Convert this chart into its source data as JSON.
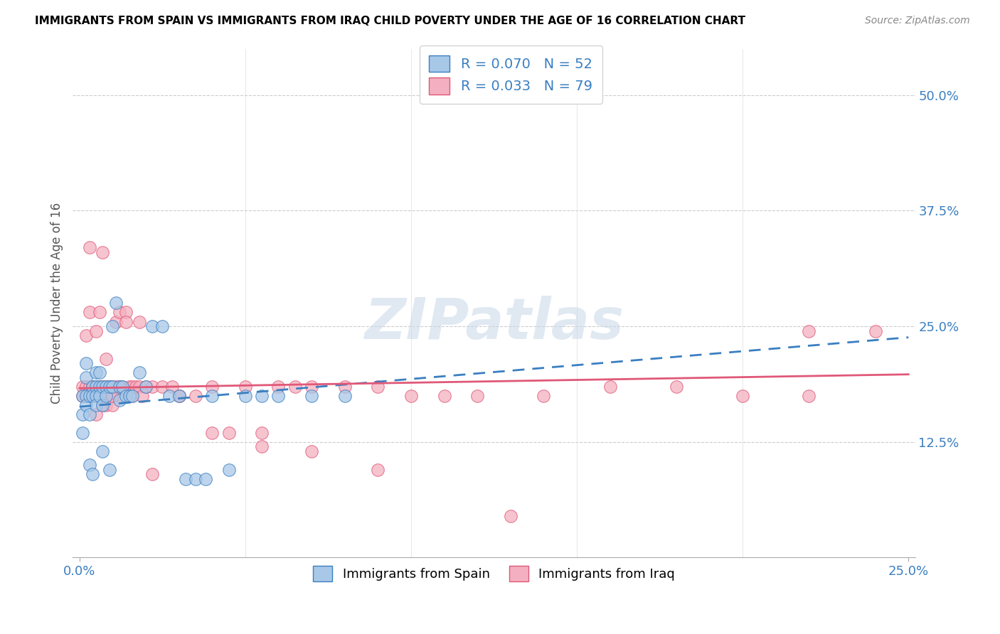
{
  "title": "IMMIGRANTS FROM SPAIN VS IMMIGRANTS FROM IRAQ CHILD POVERTY UNDER THE AGE OF 16 CORRELATION CHART",
  "source": "Source: ZipAtlas.com",
  "ylabel": "Child Poverty Under the Age of 16",
  "yticks_labels": [
    "50.0%",
    "37.5%",
    "25.0%",
    "12.5%"
  ],
  "ytick_vals": [
    0.5,
    0.375,
    0.25,
    0.125
  ],
  "xlim": [
    0.0,
    0.25
  ],
  "ylim": [
    0.0,
    0.55
  ],
  "legend_label1": "Immigrants from Spain",
  "legend_label2": "Immigrants from Iraq",
  "spain_R": "0.070",
  "spain_N": "52",
  "iraq_R": "0.033",
  "iraq_N": "79",
  "color_spain": "#a8c8e8",
  "color_iraq": "#f4b0c0",
  "line_color_spain": "#3a7fc1",
  "line_color_iraq": "#e05878",
  "watermark": "ZIPatlas",
  "spain_x": [
    0.001,
    0.001,
    0.001,
    0.002,
    0.002,
    0.002,
    0.002,
    0.003,
    0.003,
    0.003,
    0.004,
    0.004,
    0.004,
    0.005,
    0.005,
    0.005,
    0.005,
    0.006,
    0.006,
    0.006,
    0.007,
    0.007,
    0.007,
    0.008,
    0.008,
    0.009,
    0.009,
    0.01,
    0.01,
    0.011,
    0.012,
    0.012,
    0.013,
    0.014,
    0.015,
    0.016,
    0.018,
    0.02,
    0.022,
    0.025,
    0.027,
    0.03,
    0.032,
    0.035,
    0.038,
    0.04,
    0.045,
    0.05,
    0.055,
    0.06,
    0.07,
    0.08
  ],
  "spain_y": [
    0.175,
    0.155,
    0.135,
    0.175,
    0.165,
    0.195,
    0.21,
    0.175,
    0.155,
    0.1,
    0.185,
    0.175,
    0.09,
    0.185,
    0.175,
    0.2,
    0.165,
    0.185,
    0.175,
    0.2,
    0.185,
    0.165,
    0.115,
    0.185,
    0.175,
    0.185,
    0.095,
    0.185,
    0.25,
    0.275,
    0.185,
    0.17,
    0.185,
    0.175,
    0.175,
    0.175,
    0.2,
    0.185,
    0.25,
    0.25,
    0.175,
    0.175,
    0.085,
    0.085,
    0.085,
    0.175,
    0.095,
    0.175,
    0.175,
    0.175,
    0.175,
    0.175
  ],
  "iraq_x": [
    0.001,
    0.001,
    0.002,
    0.002,
    0.002,
    0.003,
    0.003,
    0.003,
    0.004,
    0.004,
    0.005,
    0.005,
    0.005,
    0.005,
    0.006,
    0.006,
    0.006,
    0.007,
    0.007,
    0.007,
    0.008,
    0.008,
    0.008,
    0.009,
    0.009,
    0.01,
    0.01,
    0.01,
    0.011,
    0.011,
    0.012,
    0.012,
    0.013,
    0.013,
    0.014,
    0.015,
    0.015,
    0.016,
    0.016,
    0.017,
    0.018,
    0.019,
    0.02,
    0.022,
    0.025,
    0.028,
    0.03,
    0.035,
    0.04,
    0.045,
    0.05,
    0.055,
    0.06,
    0.065,
    0.07,
    0.08,
    0.09,
    0.1,
    0.12,
    0.14,
    0.16,
    0.18,
    0.2,
    0.22,
    0.003,
    0.007,
    0.01,
    0.014,
    0.018,
    0.022,
    0.03,
    0.04,
    0.055,
    0.07,
    0.09,
    0.11,
    0.13,
    0.22,
    0.24
  ],
  "iraq_y": [
    0.185,
    0.175,
    0.24,
    0.175,
    0.185,
    0.265,
    0.185,
    0.175,
    0.185,
    0.175,
    0.185,
    0.175,
    0.155,
    0.245,
    0.185,
    0.175,
    0.265,
    0.185,
    0.175,
    0.165,
    0.185,
    0.215,
    0.165,
    0.185,
    0.175,
    0.185,
    0.175,
    0.165,
    0.185,
    0.255,
    0.185,
    0.265,
    0.185,
    0.175,
    0.265,
    0.185,
    0.175,
    0.185,
    0.175,
    0.185,
    0.185,
    0.175,
    0.185,
    0.185,
    0.185,
    0.185,
    0.175,
    0.175,
    0.185,
    0.135,
    0.185,
    0.135,
    0.185,
    0.185,
    0.185,
    0.185,
    0.185,
    0.175,
    0.175,
    0.175,
    0.185,
    0.185,
    0.175,
    0.175,
    0.335,
    0.33,
    0.175,
    0.255,
    0.255,
    0.09,
    0.175,
    0.135,
    0.12,
    0.115,
    0.095,
    0.175,
    0.045,
    0.245,
    0.245
  ],
  "spain_line_x": [
    0.0,
    0.25
  ],
  "spain_line_y": [
    0.163,
    0.238
  ],
  "iraq_line_x": [
    0.0,
    0.25
  ],
  "iraq_line_y": [
    0.183,
    0.198
  ]
}
